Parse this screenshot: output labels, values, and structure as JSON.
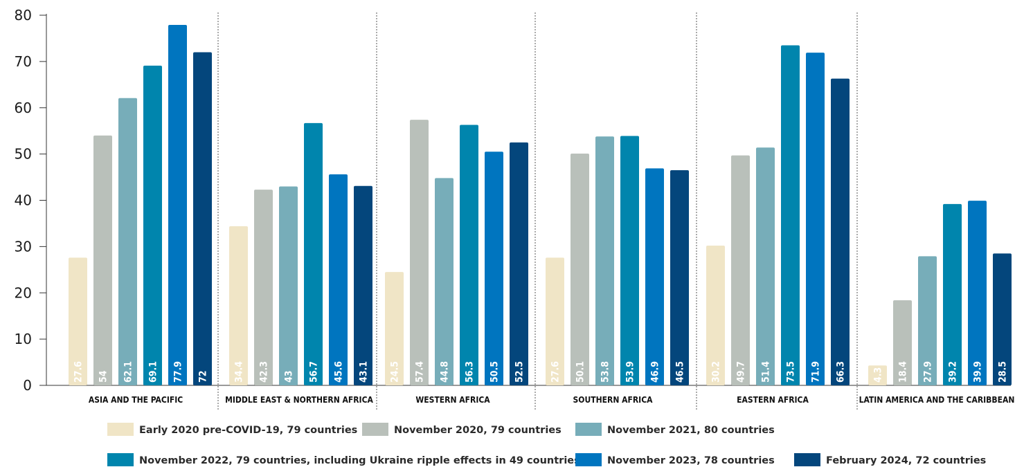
{
  "chart_data": {
    "type": "bar",
    "ylim": [
      0,
      80
    ],
    "yticks": [
      "0",
      "10",
      "20",
      "30",
      "40",
      "50",
      "60",
      "70",
      "80"
    ],
    "categories": [
      "ASIA AND THE PACIFIC",
      "MIDDLE EAST & NORTHERN AFRICA",
      "WESTERN AFRICA",
      "SOUTHERN AFRICA",
      "EASTERN AFRICA",
      "LATIN AMERICA AND THE CARIBBEAN"
    ],
    "series": [
      {
        "name": "Early 2020 pre-COVID-19, 79 countries",
        "color": "#f0e5c6",
        "values": [
          27.6,
          34.4,
          24.5,
          27.6,
          30.2,
          4.3
        ],
        "labels": [
          "27.6",
          "34.4",
          "24.5",
          "27.6",
          "30.2",
          "4.3"
        ]
      },
      {
        "name": "November 2020, 79 countries",
        "color": "#b9c0ba",
        "values": [
          54,
          42.3,
          57.4,
          50.1,
          49.7,
          18.4
        ],
        "labels": [
          "54",
          "42.3",
          "57.4",
          "50.1",
          "49.7",
          "18.4"
        ]
      },
      {
        "name": "November 2021, 80 countries",
        "color": "#77adb9",
        "values": [
          62.1,
          43,
          44.8,
          53.8,
          51.4,
          27.9
        ],
        "labels": [
          "62.1",
          "43",
          "44.8",
          "53.8",
          "51.4",
          "27.9"
        ]
      },
      {
        "name": "November 2022, 79 countries, including Ukraine ripple effects in 49 countries",
        "color": "#0085ad",
        "values": [
          69.1,
          56.7,
          56.3,
          53.9,
          73.5,
          39.2
        ],
        "labels": [
          "69.1",
          "56.7",
          "56.3",
          "53.9",
          "73.5",
          "39.2"
        ]
      },
      {
        "name": "November 2023, 78 countries",
        "color": "#0075bf",
        "values": [
          77.9,
          45.6,
          50.5,
          46.9,
          71.9,
          39.9
        ],
        "labels": [
          "77.9",
          "45.6",
          "50.5",
          "46.9",
          "71.9",
          "39.9"
        ]
      },
      {
        "name": "February 2024, 72 countries",
        "color": "#04467c",
        "values": [
          72,
          43.1,
          52.5,
          46.5,
          66.3,
          28.5
        ],
        "labels": [
          "72",
          "43.1",
          "52.5",
          "46.5",
          "66.3",
          "28.5"
        ]
      }
    ],
    "grid": false,
    "legend_position": "bottom"
  }
}
